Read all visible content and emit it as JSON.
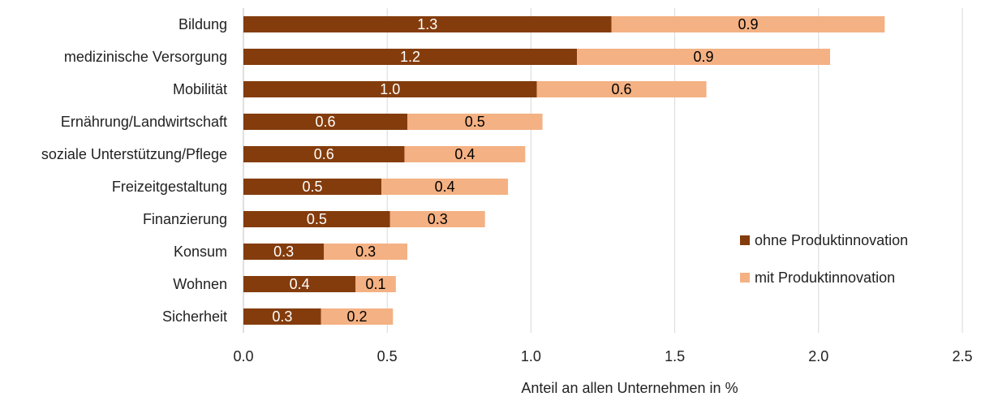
{
  "chart_data": {
    "type": "bar",
    "orientation": "horizontal",
    "stacked": true,
    "categories": [
      "Bildung",
      "medizinische Versorgung",
      "Mobilität",
      "Ernährung/Landwirtschaft",
      "soziale Unterstützung/Pflege",
      "Freizeitgestaltung",
      "Finanzierung",
      "Konsum",
      "Wohnen",
      "Sicherheit"
    ],
    "series": [
      {
        "name": "ohne Produktinnovation",
        "color": "#843c0c",
        "label_color": "#ffffff",
        "values": [
          1.28,
          1.16,
          1.02,
          0.57,
          0.56,
          0.48,
          0.51,
          0.28,
          0.39,
          0.27
        ],
        "labels": [
          "1.3",
          "1.2",
          "1.0",
          "0.6",
          "0.6",
          "0.5",
          "0.5",
          "0.3",
          "0.4",
          "0.3"
        ]
      },
      {
        "name": "mit Produktinnovation",
        "color": "#f4b183",
        "label_color": "#000000",
        "values": [
          0.95,
          0.88,
          0.59,
          0.47,
          0.42,
          0.44,
          0.33,
          0.29,
          0.14,
          0.25
        ],
        "labels": [
          "0.9",
          "0.9",
          "0.6",
          "0.5",
          "0.4",
          "0.4",
          "0.3",
          "0.3",
          "0.1",
          "0.2"
        ]
      }
    ],
    "xlabel": "Anteil an allen Unternehmen  in %",
    "xlim": [
      0,
      2.5
    ],
    "xticks": [
      "0.0",
      "0.5",
      "1.0",
      "1.5",
      "2.0",
      "2.5"
    ],
    "grid": "vertical",
    "legend": "right"
  }
}
